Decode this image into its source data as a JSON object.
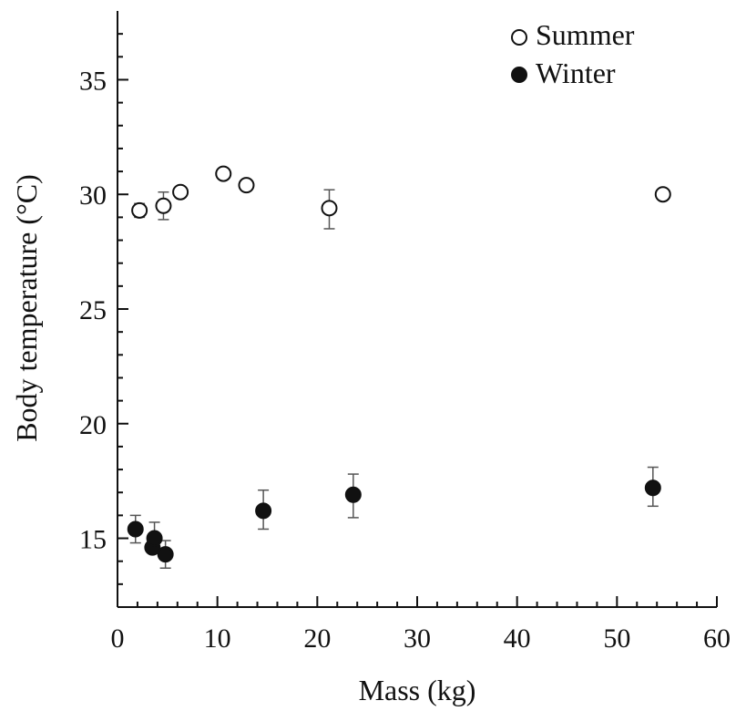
{
  "chart_data": {
    "type": "scatter",
    "title": "",
    "xlabel": "Mass (kg)",
    "ylabel": "Body temperature (°C)",
    "xlim": [
      0,
      60
    ],
    "ylim": [
      12,
      38
    ],
    "xticks": [
      0,
      10,
      20,
      30,
      40,
      50,
      60
    ],
    "yticks": [
      15,
      20,
      25,
      30,
      35
    ],
    "grid": false,
    "legend_position": "top-right",
    "series": [
      {
        "name": "Summer",
        "marker": "open-circle",
        "color": "#111111",
        "points": [
          {
            "x": 2.2,
            "y": 29.3,
            "err_lo": 0.3,
            "err_hi": 0.3
          },
          {
            "x": 4.6,
            "y": 29.5,
            "err_lo": 0.6,
            "err_hi": 0.6
          },
          {
            "x": 6.3,
            "y": 30.1,
            "err_lo": 0.0,
            "err_hi": 0.0
          },
          {
            "x": 10.6,
            "y": 30.9,
            "err_lo": 0.0,
            "err_hi": 0.0
          },
          {
            "x": 12.9,
            "y": 30.4,
            "err_lo": 0.0,
            "err_hi": 0.0
          },
          {
            "x": 21.2,
            "y": 29.4,
            "err_lo": 0.9,
            "err_hi": 0.8
          },
          {
            "x": 54.6,
            "y": 30.0,
            "err_lo": 0.0,
            "err_hi": 0.0
          }
        ]
      },
      {
        "name": "Winter",
        "marker": "filled-circle",
        "color": "#111111",
        "points": [
          {
            "x": 1.8,
            "y": 15.4,
            "err_lo": 0.6,
            "err_hi": 0.6
          },
          {
            "x": 3.5,
            "y": 14.6,
            "err_lo": 0.0,
            "err_hi": 0.0
          },
          {
            "x": 3.7,
            "y": 15.0,
            "err_lo": 0.4,
            "err_hi": 0.7
          },
          {
            "x": 4.8,
            "y": 14.3,
            "err_lo": 0.6,
            "err_hi": 0.6
          },
          {
            "x": 14.6,
            "y": 16.2,
            "err_lo": 0.8,
            "err_hi": 0.9
          },
          {
            "x": 23.6,
            "y": 16.9,
            "err_lo": 1.0,
            "err_hi": 0.9
          },
          {
            "x": 53.6,
            "y": 17.2,
            "err_lo": 0.8,
            "err_hi": 0.9
          }
        ]
      }
    ]
  }
}
